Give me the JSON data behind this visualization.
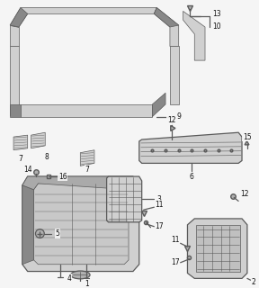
{
  "bg_color": "#f5f5f5",
  "line_color": "#5a5a5a",
  "label_color": "#111111",
  "fig_width": 2.88,
  "fig_height": 3.2,
  "dpi": 100,
  "lw_main": 0.9,
  "lw_thin": 0.5,
  "lw_thick": 1.2,
  "gray_fill": "#b0b0b0",
  "gray_light": "#d0d0d0",
  "gray_dark": "#888888"
}
